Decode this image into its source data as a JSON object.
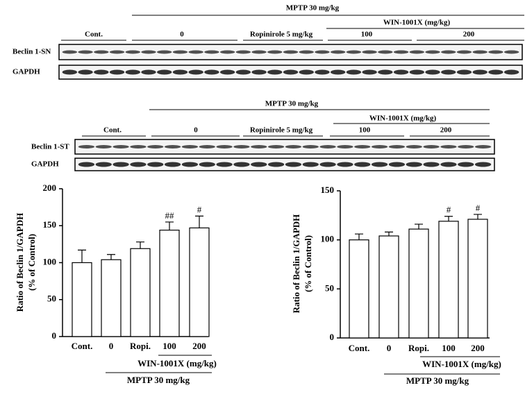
{
  "blots": [
    {
      "header": "MPTP 30 mg/kg",
      "subheader": "WIN-1001X (mg/kg)",
      "groups": [
        "Cont.",
        "0",
        "Ropinirole 5 mg/kg",
        "100",
        "200"
      ],
      "rows": [
        "Beclin 1-SN",
        "GAPDH"
      ]
    },
    {
      "header": "MPTP 30 mg/kg",
      "subheader": "WIN-1001X (mg/kg)",
      "groups": [
        "Cont.",
        "0",
        "Ropinirole 5 mg/kg",
        "100",
        "200"
      ],
      "rows": [
        "Beclin 1-ST",
        "GAPDH"
      ]
    }
  ],
  "chart_data": [
    {
      "type": "bar",
      "ylabel": [
        "Ratio of Beclin 1/GAPDH",
        "(% of Control)"
      ],
      "categories": [
        "Cont.",
        "0",
        "Ropi.",
        "100",
        "200"
      ],
      "values": [
        100,
        104,
        119,
        144,
        147
      ],
      "errors": [
        17,
        7,
        9,
        11,
        16
      ],
      "significance": [
        null,
        null,
        null,
        "##",
        "#"
      ],
      "group_labels": [
        "WIN-1001X (mg/kg)",
        "MPTP 30 mg/kg"
      ],
      "ylim": [
        0,
        200
      ],
      "yticks": [
        0,
        50,
        100,
        150,
        200
      ],
      "color": "#ffffff"
    },
    {
      "type": "bar",
      "ylabel": [
        "Ratio of Beclin 1/GAPDH",
        "(% of Control)"
      ],
      "categories": [
        "Cont.",
        "0",
        "Ropi.",
        "100",
        "200"
      ],
      "values": [
        100,
        104,
        111,
        119,
        121
      ],
      "errors": [
        6,
        4,
        5,
        5,
        5
      ],
      "significance": [
        null,
        null,
        null,
        "#",
        "#"
      ],
      "group_labels": [
        "WIN-1001X (mg/kg)",
        "MPTP 30 mg/kg"
      ],
      "ylim": [
        0,
        150
      ],
      "yticks": [
        0,
        50,
        100,
        150
      ],
      "color": "#ffffff"
    }
  ]
}
